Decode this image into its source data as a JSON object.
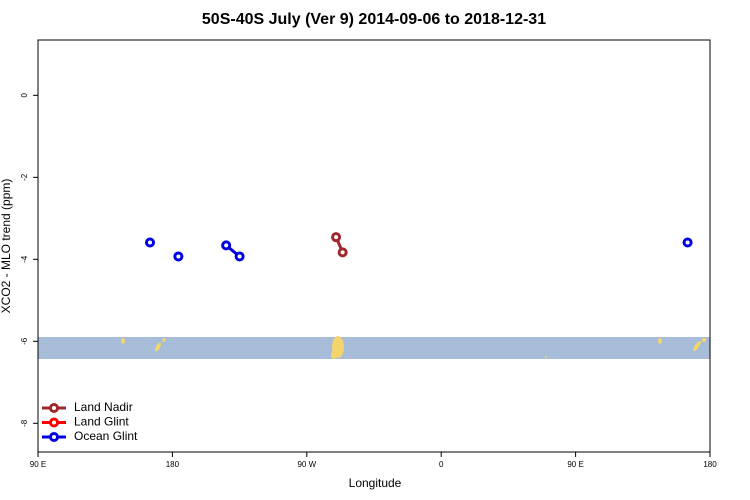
{
  "chart_data": {
    "type": "line",
    "title": "50S-40S July (Ver 9)   2014-09-06 to 2018-12-31",
    "x_label": "Longitude",
    "y_label": "XCO2 - MLO trend (ppm)",
    "xlim": [
      90,
      540
    ],
    "xticks": [
      {
        "value": 90,
        "label": "90 E"
      },
      180,
      {
        "value": 270,
        "label": "90 W"
      },
      {
        "value": 360,
        "label": "0"
      },
      {
        "value": 450,
        "label": "90 E"
      },
      {
        "value": 540,
        "label": "180"
      }
    ],
    "ylim": [
      -8.7,
      1.35
    ],
    "yticks": [
      0,
      -2,
      -4,
      -6,
      -8
    ],
    "legend": "bottom-left",
    "series": [
      {
        "name": "Land Nadir",
        "color": "#a0282d",
        "x": [
          289.6,
          294
        ],
        "values": [
          -3.46,
          -3.83
        ]
      },
      {
        "name": "Land Glint",
        "color": "#ff0000",
        "x": [],
        "values": []
      },
      {
        "name": "Ocean Glint",
        "color": "#0000e0",
        "x": [
          165,
          null,
          184,
          null,
          216,
          225,
          null,
          525
        ],
        "values": [
          -3.59,
          null,
          -3.93,
          null,
          -3.66,
          -3.93,
          null,
          -3.59
        ]
      }
    ]
  }
}
